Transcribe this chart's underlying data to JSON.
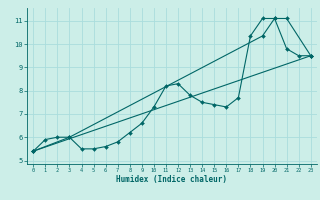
{
  "xlabel": "Humidex (Indice chaleur)",
  "bg_color": "#cceee8",
  "grid_color": "#aadddd",
  "line_color": "#006666",
  "xlim": [
    -0.5,
    23.5
  ],
  "ylim": [
    4.85,
    11.55
  ],
  "xticks": [
    0,
    1,
    2,
    3,
    4,
    5,
    6,
    7,
    8,
    9,
    10,
    11,
    12,
    13,
    14,
    15,
    16,
    17,
    18,
    19,
    20,
    21,
    22,
    23
  ],
  "yticks": [
    5,
    6,
    7,
    8,
    9,
    10,
    11
  ],
  "line1_x": [
    0,
    1,
    2,
    3,
    4,
    5,
    6,
    7,
    8,
    9,
    10,
    11,
    12,
    13,
    14,
    15,
    16,
    17,
    18,
    19,
    20,
    21,
    22,
    23
  ],
  "line1_y": [
    5.4,
    5.9,
    6.0,
    6.0,
    5.5,
    5.5,
    5.6,
    5.8,
    6.2,
    6.6,
    7.3,
    8.2,
    8.3,
    7.8,
    7.5,
    7.4,
    7.3,
    7.7,
    10.35,
    11.1,
    11.1,
    9.8,
    9.5,
    9.5
  ],
  "line2_x": [
    0,
    3,
    19,
    20,
    21,
    23
  ],
  "line2_y": [
    5.4,
    6.0,
    10.35,
    11.1,
    11.1,
    9.5
  ],
  "line3_x": [
    0,
    23
  ],
  "line3_y": [
    5.4,
    9.5
  ]
}
